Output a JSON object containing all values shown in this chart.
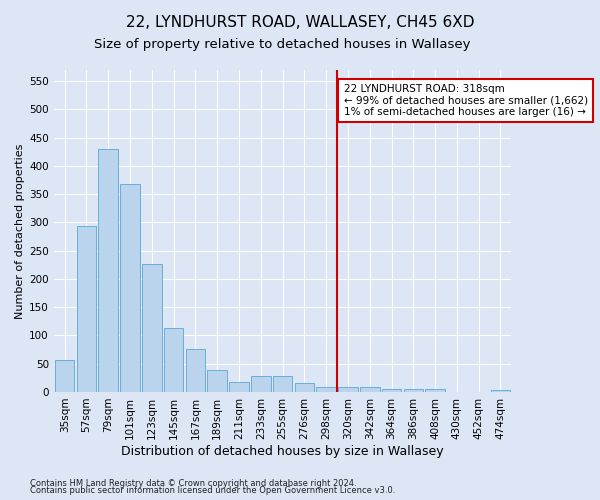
{
  "title": "22, LYNDHURST ROAD, WALLASEY, CH45 6XD",
  "subtitle": "Size of property relative to detached houses in Wallasey",
  "xlabel": "Distribution of detached houses by size in Wallasey",
  "ylabel": "Number of detached properties",
  "footnote1": "Contains HM Land Registry data © Crown copyright and database right 2024.",
  "footnote2": "Contains public sector information licensed under the Open Government Licence v3.0.",
  "bar_labels": [
    "35sqm",
    "57sqm",
    "79sqm",
    "101sqm",
    "123sqm",
    "145sqm",
    "167sqm",
    "189sqm",
    "211sqm",
    "233sqm",
    "255sqm",
    "276sqm",
    "298sqm",
    "320sqm",
    "342sqm",
    "364sqm",
    "386sqm",
    "408sqm",
    "430sqm",
    "452sqm",
    "474sqm"
  ],
  "bar_values": [
    57,
    293,
    430,
    368,
    227,
    113,
    76,
    38,
    17,
    28,
    28,
    15,
    8,
    9,
    8,
    5,
    5,
    5,
    0,
    0,
    3
  ],
  "bar_color": "#bad4ee",
  "bar_edgecolor": "#6aaed6",
  "vline_x_index": 13,
  "vline_color": "#cc0000",
  "annotation_text": "22 LYNDHURST ROAD: 318sqm\n← 99% of detached houses are smaller (1,662)\n1% of semi-detached houses are larger (16) →",
  "annotation_box_facecolor": "#ffffff",
  "annotation_box_edgecolor": "#cc0000",
  "ylim": [
    0,
    570
  ],
  "yticks": [
    0,
    50,
    100,
    150,
    200,
    250,
    300,
    350,
    400,
    450,
    500,
    550
  ],
  "background_color": "#dce6f5",
  "grid_color": "#ffffff",
  "title_fontsize": 11,
  "subtitle_fontsize": 9.5,
  "xlabel_fontsize": 9,
  "ylabel_fontsize": 8,
  "tick_fontsize": 7.5,
  "annotation_fontsize": 7.5,
  "footnote_fontsize": 6
}
